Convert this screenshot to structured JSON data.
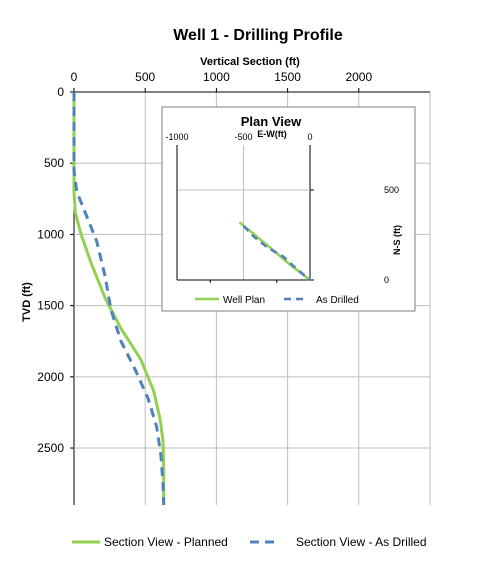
{
  "chart_data": [
    {
      "type": "line",
      "title": "Well 1 - Drilling Profile",
      "xlabel": "Vertical Section (ft)",
      "ylabel": "TVD (ft)",
      "x_ticks": [
        "0",
        "500",
        "1000",
        "1500",
        "2000"
      ],
      "y_ticks": [
        "0",
        "500",
        "1000",
        "1500",
        "2000",
        "2500"
      ],
      "xlim": [
        0,
        2500
      ],
      "ylim": [
        0,
        2900
      ],
      "y_inverted": true,
      "x_axis_position": "top",
      "grid": true,
      "legend_position": "bottom",
      "series": [
        {
          "name": "Section View - Planned",
          "color": "#92D050",
          "style": "solid",
          "points": [
            [
              0,
              0
            ],
            [
              0,
              700
            ],
            [
              10,
              850
            ],
            [
              50,
              1000
            ],
            [
              120,
              1200
            ],
            [
              220,
              1450
            ],
            [
              330,
              1660
            ],
            [
              470,
              1880
            ],
            [
              560,
              2100
            ],
            [
              605,
              2300
            ],
            [
              625,
              2450
            ],
            [
              630,
              2650
            ],
            [
              630,
              2900
            ]
          ]
        },
        {
          "name": "Section View - As Drilled",
          "color": "#4F81BD",
          "style": "dashed",
          "points": [
            [
              0,
              0
            ],
            [
              0,
              550
            ],
            [
              20,
              700
            ],
            [
              80,
              850
            ],
            [
              160,
              1050
            ],
            [
              220,
              1300
            ],
            [
              260,
              1530
            ],
            [
              330,
              1750
            ],
            [
              430,
              1950
            ],
            [
              520,
              2150
            ],
            [
              580,
              2350
            ],
            [
              610,
              2550
            ],
            [
              625,
              2750
            ],
            [
              630,
              2900
            ]
          ]
        }
      ]
    },
    {
      "type": "line",
      "title": "Plan View",
      "xlabel": "E-W(ft)",
      "ylabel": "N-S (ft)",
      "x_ticks": [
        "-1000",
        "-500",
        "0"
      ],
      "y_ticks": [
        "0",
        "500"
      ],
      "xlim": [
        -1000,
        0
      ],
      "ylim": [
        0,
        750
      ],
      "x_axis_position": "top",
      "y_axis_position": "right",
      "grid": true,
      "legend_position": "bottom",
      "series": [
        {
          "name": "Well Plan",
          "color": "#92D050",
          "style": "solid",
          "points": [
            [
              -530,
              320
            ],
            [
              -430,
              260
            ],
            [
              -300,
              180
            ],
            [
              -150,
              85
            ],
            [
              0,
              0
            ]
          ]
        },
        {
          "name": "As Drilled",
          "color": "#4F81BD",
          "style": "dashed",
          "points": [
            [
              -500,
              300
            ],
            [
              -420,
              240
            ],
            [
              -320,
              180
            ],
            [
              -200,
              130
            ],
            [
              -120,
              75
            ],
            [
              0,
              0
            ]
          ]
        }
      ]
    }
  ]
}
